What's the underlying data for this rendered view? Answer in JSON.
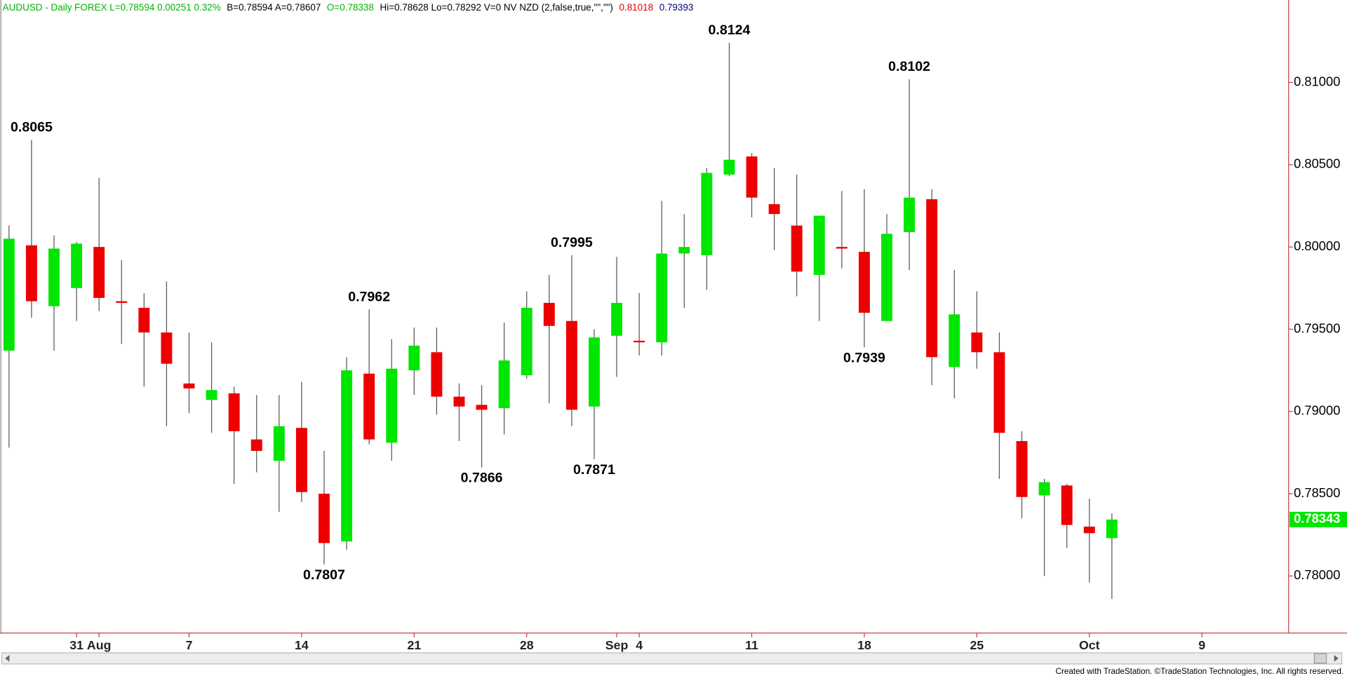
{
  "header": [
    {
      "text": "AUDUSD - Daily  FOREX  L=0.78594  0.00251  0.32%",
      "color": "#00b400"
    },
    {
      "text": "B=0.78594  A=0.78607",
      "color": "#000000"
    },
    {
      "text": "O=0.78338",
      "color": "#00b400"
    },
    {
      "text": "Hi=0.78628  Lo=0.78292  V=0  NV NZD (2,false,true,\"\",\"\")",
      "color": "#000000"
    },
    {
      "text": "0.81018",
      "color": "#e00000"
    },
    {
      "text": "0.79393",
      "color": "#000080"
    }
  ],
  "footer": "Created with TradeStation. ©TradeStation Technologies, Inc. All rights reserved.",
  "chart_data": {
    "type": "candlestick",
    "up_color": "#00e600",
    "down_color": "#ee0000",
    "wick_color": "#555555",
    "categories": [
      null,
      null,
      null,
      "31",
      "Aug",
      null,
      null,
      null,
      "7",
      null,
      null,
      null,
      null,
      "14",
      null,
      null,
      null,
      null,
      "21",
      null,
      null,
      null,
      null,
      "28",
      null,
      null,
      null,
      "Sep",
      "4",
      null,
      null,
      null,
      null,
      "11",
      null,
      null,
      null,
      null,
      "18",
      null,
      null,
      null,
      null,
      "25",
      null,
      null,
      null,
      null,
      "Oct",
      null,
      null,
      null,
      null,
      "9"
    ],
    "open": [
      0.7937,
      0.8001,
      0.7964,
      0.7975,
      0.8,
      0.7967,
      0.7963,
      0.7948,
      0.7917,
      0.7907,
      0.7911,
      0.7883,
      0.787,
      0.789,
      0.785,
      0.7821,
      0.7923,
      0.7881,
      0.7925,
      0.7936,
      0.7909,
      0.7904,
      0.7902,
      0.7922,
      0.7966,
      0.7955,
      0.7903,
      0.7946,
      0.7943,
      0.7942,
      0.7996,
      0.7995,
      0.8044,
      0.8055,
      0.8026,
      0.8013,
      0.7983,
      0.8,
      0.7997,
      0.7955,
      0.8009,
      0.8029,
      0.7927,
      0.7948,
      0.7936,
      0.7882,
      0.7849,
      0.7855,
      0.783,
      0.7823,
      null,
      null,
      null,
      null
    ],
    "high": [
      0.8013,
      0.8065,
      0.8007,
      0.8003,
      0.8042,
      0.7992,
      0.7972,
      0.7979,
      0.7948,
      0.7942,
      0.7915,
      0.791,
      0.791,
      0.7918,
      0.7876,
      0.7933,
      0.7962,
      0.7944,
      0.7951,
      0.7951,
      0.7917,
      0.7916,
      0.7954,
      0.7973,
      0.7983,
      0.7995,
      0.795,
      0.7994,
      0.7972,
      0.8028,
      0.802,
      0.8048,
      0.8124,
      0.8057,
      0.8048,
      0.8044,
      0.8019,
      0.8034,
      0.8035,
      0.802,
      0.8102,
      0.8035,
      0.7986,
      0.7973,
      0.7948,
      0.7888,
      0.7859,
      0.7856,
      0.7847,
      0.7838,
      null,
      null,
      null,
      null
    ],
    "low": [
      0.7878,
      0.7957,
      0.7937,
      0.7955,
      0.7961,
      0.7941,
      0.7915,
      0.7891,
      0.7899,
      0.7887,
      0.7856,
      0.7863,
      0.7839,
      0.7845,
      0.7807,
      0.7816,
      0.788,
      0.787,
      0.791,
      0.7898,
      0.7882,
      0.7866,
      0.7886,
      0.792,
      0.7905,
      0.7891,
      0.7871,
      0.7921,
      0.7934,
      0.7934,
      0.7963,
      0.7974,
      0.8043,
      0.8018,
      0.7998,
      0.797,
      0.7955,
      0.7987,
      0.7939,
      0.7955,
      0.7986,
      0.7916,
      0.7908,
      0.7926,
      0.7859,
      0.7835,
      0.78,
      0.7817,
      0.7796,
      0.7786,
      null,
      null,
      null,
      null
    ],
    "close": [
      0.8005,
      0.7967,
      0.7999,
      0.8002,
      0.7969,
      0.7966,
      0.7948,
      0.7929,
      0.7914,
      0.7913,
      0.7888,
      0.7876,
      0.7891,
      0.7851,
      0.782,
      0.7925,
      0.7883,
      0.7926,
      0.794,
      0.7909,
      0.7903,
      0.7901,
      0.7931,
      0.7963,
      0.7952,
      0.7901,
      0.7945,
      0.7966,
      0.7942,
      0.7996,
      0.8,
      0.8045,
      0.8053,
      0.803,
      0.802,
      0.7985,
      0.8019,
      0.7999,
      0.796,
      0.8008,
      0.803,
      0.7933,
      0.7959,
      0.7936,
      0.7887,
      0.7848,
      0.7857,
      0.7831,
      0.7826,
      0.78343,
      null,
      null,
      null,
      null
    ],
    "ylim": [
      0.77653,
      0.81501
    ],
    "yticks": [
      {
        "value": 0.78,
        "label": "0.78000"
      },
      {
        "value": 0.785,
        "label": "0.78500"
      },
      {
        "value": 0.79,
        "label": "0.79000"
      },
      {
        "value": 0.795,
        "label": "0.79500"
      },
      {
        "value": 0.8,
        "label": "0.80000"
      },
      {
        "value": 0.805,
        "label": "0.80500"
      },
      {
        "value": 0.81,
        "label": "0.81000"
      }
    ],
    "annotations": [
      0.8065,
      0.7962,
      0.7807,
      0.7866,
      0.7995,
      0.7871,
      0.8124,
      0.8102,
      0.7939
    ],
    "last_price": 0.78343,
    "last_price_color": "#00e600"
  }
}
